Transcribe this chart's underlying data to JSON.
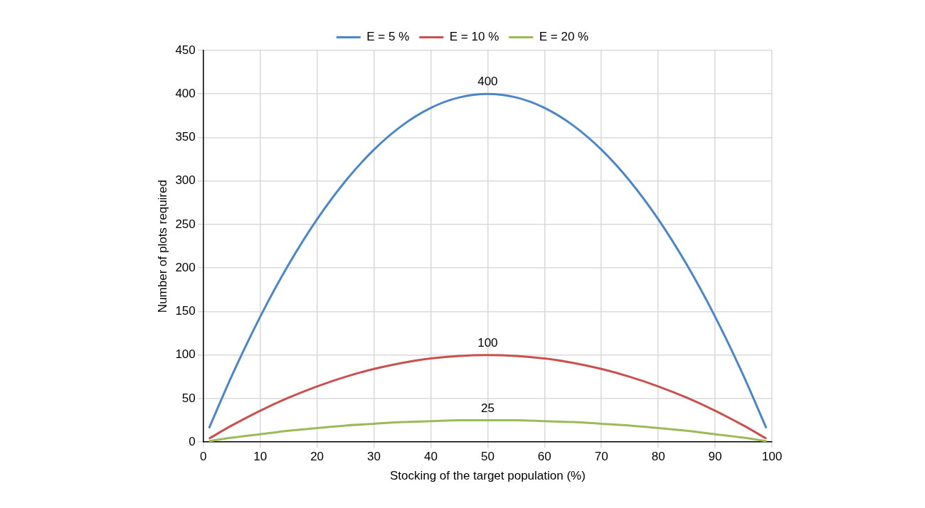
{
  "chart_data": {
    "type": "line",
    "xlabel": "Stocking of the target population (%)",
    "ylabel": "Number of plots required",
    "xlim": [
      0,
      100
    ],
    "xticks": [
      0,
      10,
      20,
      30,
      40,
      50,
      60,
      70,
      80,
      90,
      100
    ],
    "ylim": [
      0,
      450
    ],
    "yticks": [
      0,
      50,
      100,
      150,
      200,
      250,
      300,
      350,
      400,
      450
    ],
    "grid": true,
    "legend": "top",
    "marker": "none",
    "line_style": "solid",
    "x": [
      1,
      5,
      10,
      15,
      20,
      25,
      30,
      35,
      40,
      45,
      50,
      55,
      60,
      65,
      70,
      75,
      80,
      85,
      90,
      95,
      99
    ],
    "series": [
      {
        "name": "E = 5 %",
        "color": "#4a86c8",
        "values": [
          16,
          76,
          144,
          204,
          256,
          300,
          336,
          364,
          384,
          396,
          400,
          396,
          384,
          364,
          336,
          300,
          256,
          204,
          144,
          76,
          16
        ],
        "value_labels": [
          null,
          null,
          null,
          null,
          null,
          null,
          null,
          null,
          null,
          null,
          "400",
          null,
          null,
          null,
          null,
          null,
          null,
          null,
          null,
          null,
          null
        ]
      },
      {
        "name": "E = 10 %",
        "color": "#c9504c",
        "values": [
          4,
          19,
          36,
          51,
          64,
          75,
          84,
          91,
          96,
          99,
          100,
          99,
          96,
          91,
          84,
          75,
          64,
          51,
          36,
          19,
          4
        ],
        "value_labels": [
          null,
          null,
          null,
          null,
          null,
          null,
          null,
          null,
          null,
          null,
          "100",
          null,
          null,
          null,
          null,
          null,
          null,
          null,
          null,
          null,
          null
        ]
      },
      {
        "name": "E = 20 %",
        "color": "#9bbb59",
        "values": [
          1,
          5,
          9,
          13,
          16,
          19,
          21,
          23,
          24,
          25,
          25,
          25,
          24,
          23,
          21,
          19,
          16,
          13,
          9,
          5,
          1
        ],
        "value_labels": [
          null,
          null,
          null,
          null,
          null,
          null,
          null,
          null,
          null,
          null,
          "25",
          null,
          null,
          null,
          null,
          null,
          null,
          null,
          null,
          null,
          null
        ]
      }
    ]
  }
}
